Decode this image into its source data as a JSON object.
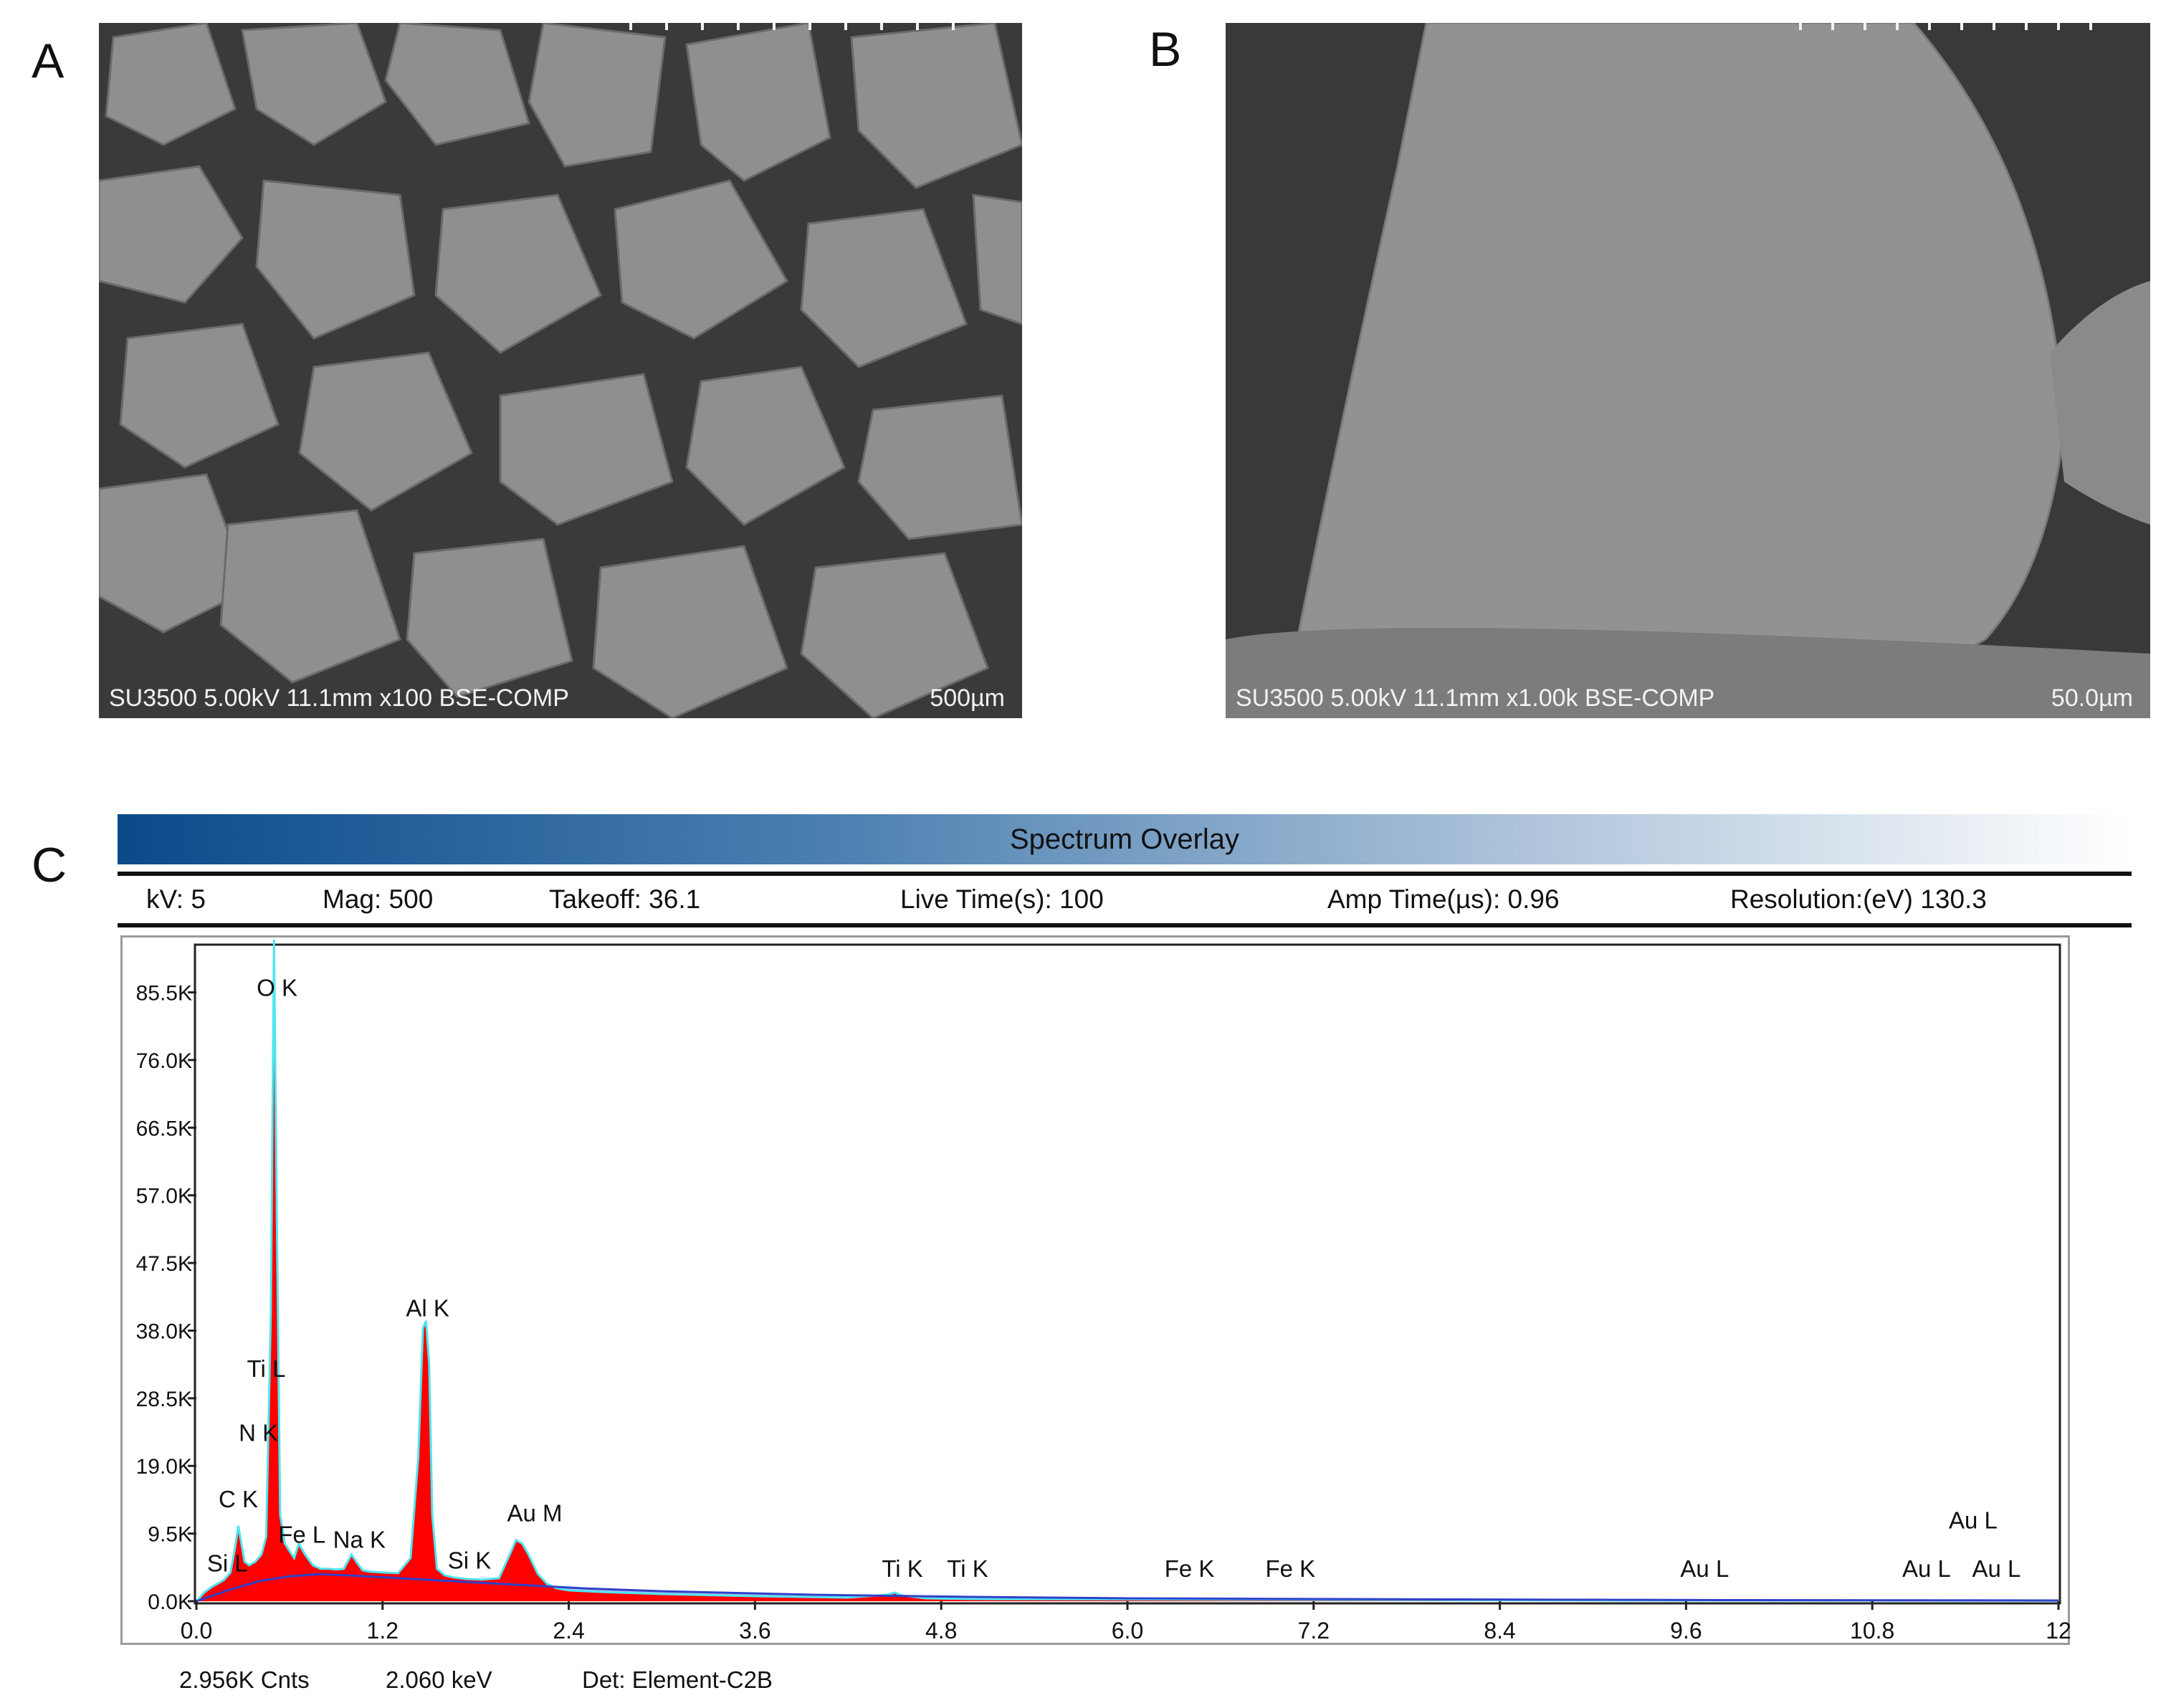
{
  "panels": {
    "a": {
      "letter": "A",
      "info": "SU3500 5.00kV 11.1mm x100 BSE-COMP",
      "scale": "500µm"
    },
    "b": {
      "letter": "B",
      "info": "SU3500 5.00kV 11.1mm x1.00k BSE-COMP",
      "scale": "50.0µm"
    },
    "c": {
      "letter": "C"
    }
  },
  "spectrum": {
    "title": "Spectrum Overlay",
    "params": [
      {
        "text": "kV: 5"
      },
      {
        "text": "Mag: 500"
      },
      {
        "text": "Takeoff: 36.1"
      },
      {
        "text": "Live Time(s): 100"
      },
      {
        "text": "Amp Time(µs): 0.96"
      },
      {
        "text": "Resolution:(eV) 130.3"
      }
    ],
    "footer": {
      "counts": "2.956K Cnts",
      "energy": "2.060 keV",
      "detector": "Det: Element-C2B"
    }
  },
  "chart_data": {
    "type": "area",
    "title": "Spectrum Overlay",
    "xlabel": "",
    "ylabel": "",
    "xlim": [
      0,
      12
    ],
    "ylim": [
      0,
      92000
    ],
    "x_ticks": [
      "0.0",
      "1.2",
      "2.4",
      "3.6",
      "4.8",
      "6.0",
      "7.2",
      "8.4",
      "9.6",
      "10.8",
      "12"
    ],
    "x_tick_values": [
      0,
      1.2,
      2.4,
      3.6,
      4.8,
      6.0,
      7.2,
      8.4,
      9.6,
      10.8,
      12
    ],
    "y_ticks": [
      "0.0K",
      "9.5K",
      "19.0K",
      "28.5K",
      "38.0K",
      "47.5K",
      "57.0K",
      "66.5K",
      "76.0K",
      "85.5K"
    ],
    "y_tick_values": [
      0,
      9500,
      19000,
      28500,
      38000,
      47500,
      57000,
      66500,
      76000,
      85500
    ],
    "grid": false,
    "fill_color": "#ff0000",
    "overlay_color": "#4ee6f0",
    "background_color": "#3040c8",
    "series": [
      {
        "x": [
          0.0,
          0.05,
          0.1,
          0.15,
          0.18,
          0.22,
          0.25,
          0.27,
          0.29,
          0.31,
          0.34,
          0.38,
          0.42,
          0.45,
          0.48,
          0.5,
          0.52,
          0.54,
          0.57,
          0.6,
          0.63,
          0.66,
          0.7,
          0.75,
          0.8,
          0.85,
          0.9,
          0.95,
          1.0,
          1.03,
          1.07,
          1.12,
          1.2,
          1.3,
          1.38,
          1.43,
          1.46,
          1.48,
          1.5,
          1.52,
          1.55,
          1.6,
          1.66,
          1.74,
          1.84,
          1.95,
          2.02,
          2.06,
          2.1,
          2.14,
          2.2,
          2.26,
          2.32,
          2.4,
          2.6,
          3.0,
          3.6,
          4.2,
          4.45,
          4.5,
          4.55,
          4.7,
          5.0,
          6.0,
          7.2,
          8.4,
          9.6,
          10.8,
          12.0
        ],
        "y": [
          0,
          1200,
          2000,
          2600,
          3000,
          4000,
          7500,
          10500,
          8000,
          5500,
          5000,
          5500,
          6500,
          9000,
          40000,
          92000,
          50000,
          12000,
          8000,
          7000,
          6000,
          8000,
          6500,
          5000,
          4500,
          4500,
          4400,
          4500,
          6500,
          5500,
          4300,
          4100,
          4000,
          3900,
          6000,
          20000,
          38000,
          39000,
          33000,
          12000,
          4500,
          3600,
          3300,
          3100,
          3000,
          3200,
          6500,
          8500,
          8000,
          6500,
          3800,
          2400,
          1800,
          1500,
          1300,
          1000,
          700,
          500,
          900,
          1200,
          800,
          400,
          300,
          250,
          200,
          150,
          100,
          100,
          80
        ]
      }
    ],
    "background": {
      "x": [
        0.0,
        0.2,
        0.4,
        0.6,
        0.8,
        1.0,
        1.5,
        2.0,
        2.5,
        3.0,
        4.0,
        5.0,
        6.0,
        8.0,
        10.0,
        12.0
      ],
      "y": [
        0,
        1500,
        2800,
        3500,
        3800,
        3600,
        3000,
        2400,
        1800,
        1400,
        900,
        600,
        400,
        250,
        150,
        100
      ]
    },
    "peak_labels": [
      {
        "text": "O  K",
        "x": 0.52,
        "y": 85000
      },
      {
        "text": "Al K",
        "x": 1.49,
        "y": 40000
      },
      {
        "text": "Ti L",
        "x": 0.45,
        "y": 31500
      },
      {
        "text": "N  K",
        "x": 0.4,
        "y": 22500
      },
      {
        "text": "C  K",
        "x": 0.27,
        "y": 13200
      },
      {
        "text": "Si L",
        "x": 0.2,
        "y": 4200
      },
      {
        "text": "Fe L",
        "x": 0.68,
        "y": 8200
      },
      {
        "text": "Na K",
        "x": 1.05,
        "y": 7500
      },
      {
        "text": "Au M",
        "x": 2.18,
        "y": 11200
      },
      {
        "text": "Si K",
        "x": 1.76,
        "y": 4600
      },
      {
        "text": "Ti K",
        "x": 4.55,
        "y": 3400
      },
      {
        "text": "Ti K",
        "x": 4.97,
        "y": 3400
      },
      {
        "text": "Fe K",
        "x": 6.4,
        "y": 3400
      },
      {
        "text": "Fe K",
        "x": 7.05,
        "y": 3400
      },
      {
        "text": "Au L",
        "x": 9.72,
        "y": 3400
      },
      {
        "text": "Au L",
        "x": 11.15,
        "y": 3400
      },
      {
        "text": "Au L",
        "x": 11.6,
        "y": 3400
      },
      {
        "text": "Au L",
        "x": 11.45,
        "y": 10200
      }
    ]
  }
}
